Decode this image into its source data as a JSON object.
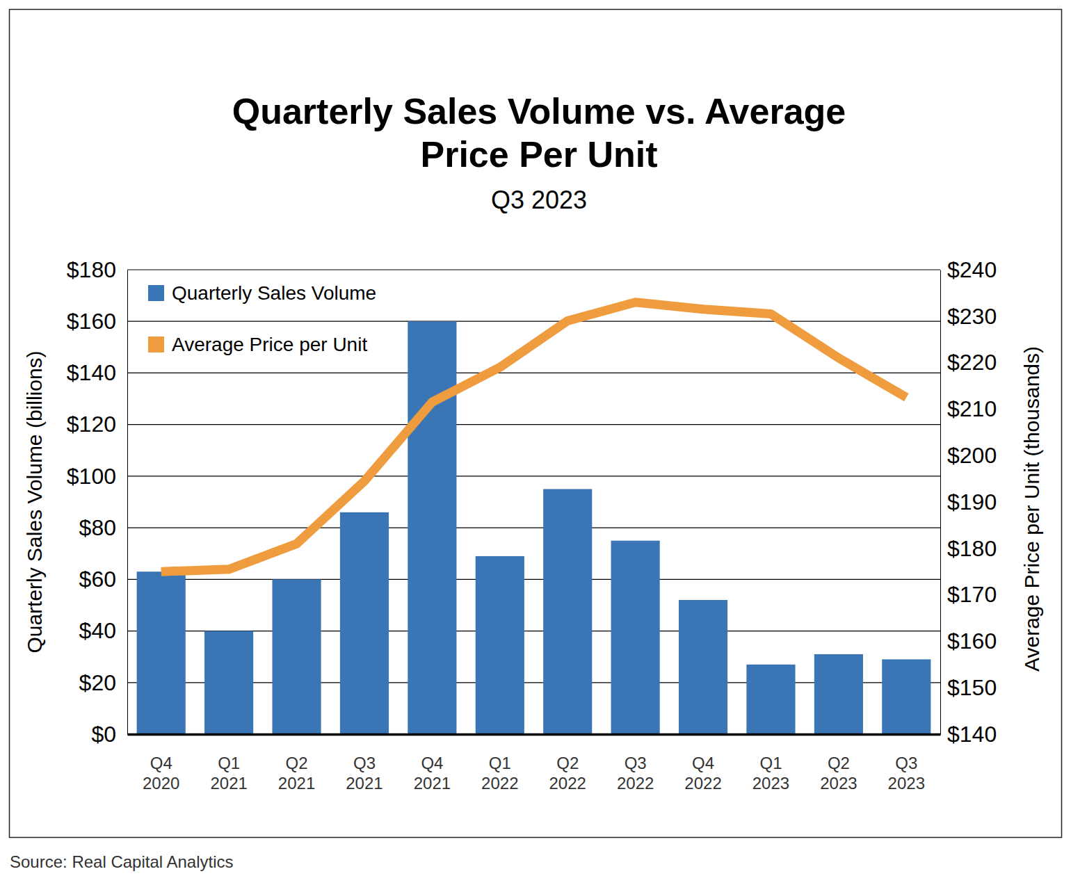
{
  "chart_data": {
    "type": "bar",
    "title": "Quarterly Sales Volume vs. Average Price Per Unit",
    "subtitle": "Q3 2023",
    "y_label": "Quarterly Sales Volume (billions)",
    "y2_label": "Average Price per Unit (thousands)",
    "source": "Source: Real Capital Analytics",
    "categories": [
      "Q4 2020",
      "Q1 2021",
      "Q2 2021",
      "Q3 2021",
      "Q4 2021",
      "Q1 2022",
      "Q2 2022",
      "Q3 2022",
      "Q4 2022",
      "Q1 2023",
      "Q2 2023",
      "Q3 2023"
    ],
    "series": [
      {
        "name": "Quarterly Sales Volume",
        "type": "bar",
        "color": "#3a75b6",
        "values": [
          63,
          40,
          60,
          86,
          160,
          69,
          95,
          75,
          52,
          27,
          31,
          29
        ]
      },
      {
        "name": "Average Price per Unit",
        "type": "line",
        "axis": "y2",
        "color": "#ef9c3f",
        "values": [
          175,
          175.5,
          181,
          194.5,
          211.5,
          219,
          229,
          233,
          231.5,
          230.5,
          221,
          212.5
        ]
      }
    ],
    "ylim": [
      0,
      180
    ],
    "yticks": [
      {
        "value": 0,
        "label": "$0"
      },
      {
        "value": 20,
        "label": "$20"
      },
      {
        "value": 40,
        "label": "$40"
      },
      {
        "value": 60,
        "label": "$60"
      },
      {
        "value": 80,
        "label": "$80"
      },
      {
        "value": 100,
        "label": "$100"
      },
      {
        "value": 120,
        "label": "$120"
      },
      {
        "value": 140,
        "label": "$140"
      },
      {
        "value": 160,
        "label": "$160"
      },
      {
        "value": 180,
        "label": "$180"
      }
    ],
    "y2lim": [
      140,
      240
    ],
    "y2ticks": [
      {
        "value": 140,
        "label": "$140"
      },
      {
        "value": 150,
        "label": "$150"
      },
      {
        "value": 160,
        "label": "$160"
      },
      {
        "value": 170,
        "label": "$170"
      },
      {
        "value": 180,
        "label": "$180"
      },
      {
        "value": 190,
        "label": "$190"
      },
      {
        "value": 200,
        "label": "$200"
      },
      {
        "value": 210,
        "label": "$210"
      },
      {
        "value": 220,
        "label": "$220"
      },
      {
        "value": 230,
        "label": "$230"
      },
      {
        "value": 240,
        "label": "$240"
      }
    ],
    "grid": true,
    "legend": "upper left"
  }
}
